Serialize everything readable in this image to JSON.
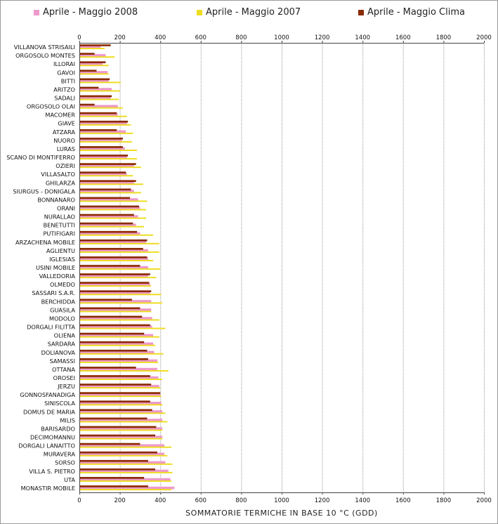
{
  "chart_data": {
    "type": "bar",
    "orientation": "horizontal",
    "xlabel": "SOMMATORIE TERMICHE IN BASE 10 °C (GDD)",
    "xlim": [
      0,
      2000
    ],
    "xticks": [
      0,
      200,
      400,
      600,
      800,
      1000,
      1200,
      1400,
      1600,
      1800,
      2000
    ],
    "grid": "vertical-dashed",
    "legend_position": "top",
    "colors": {
      "s2008": "#ee99cc",
      "s2007": "#eedd22",
      "clima": "#8b2b00"
    },
    "categories": [
      "VILLANOVA STRISAILI",
      "ORGOSOLO MONTES",
      "ILLORAI",
      "GAVOI",
      "BITTI",
      "ARITZO",
      "SADALI",
      "ORGOSOLO OLAI",
      "MACOMER",
      "GIAVE",
      "ATZARA",
      "NUORO",
      "LURAS",
      "SCANO DI MONTIFERRO",
      "OZIERI",
      "VILLASALTO",
      "GHILARZA",
      "SIURGUS - DONIGALA",
      "BONNANARO",
      "ORANI",
      "NURALLAO",
      "BENETUTTI",
      "PUTIFIGARI",
      "ARZACHENA MOBILE",
      "AGLIENTU",
      "IGLESIAS",
      "USINI MOBILE",
      "VALLEDORIA",
      "OLMEDO",
      "SASSARI S.A.R.",
      "BERCHIDDA",
      "GUASILA",
      "MODOLO",
      "DORGALI FILITTA",
      "OLIENA",
      "SARDARA",
      "DOLIANOVA",
      "SAMASSI",
      "OTTANA",
      "OROSEI",
      "JERZU",
      "GONNOSFANADIGA",
      "SINISCOLA",
      "DOMUS DE MARIA",
      "MILIS",
      "BARISARDO",
      "DECIMOMANNU",
      "DORGALI LANAITTO",
      "MURAVERA",
      "SORSO",
      "VILLA S. PIETRO",
      "UTA",
      "MONASTIR MOBILE"
    ],
    "series": [
      {
        "name": "Aprile - Maggio 2008",
        "color": "#ee99cc",
        "values": [
          105,
          130,
          115,
          140,
          145,
          160,
          155,
          190,
          190,
          235,
          230,
          210,
          225,
          235,
          270,
          235,
          270,
          270,
          290,
          300,
          290,
          280,
          300,
          330,
          340,
          340,
          340,
          340,
          350,
          350,
          355,
          355,
          360,
          360,
          365,
          365,
          370,
          385,
          385,
          390,
          395,
          400,
          405,
          410,
          410,
          410,
          410,
          420,
          420,
          425,
          440,
          450,
          470
        ]
      },
      {
        "name": "Aprile - Maggio 2007",
        "color": "#eedd22",
        "values": [
          125,
          175,
          145,
          145,
          205,
          200,
          195,
          215,
          235,
          255,
          265,
          260,
          285,
          285,
          305,
          265,
          315,
          305,
          335,
          330,
          330,
          320,
          365,
          395,
          395,
          365,
          400,
          380,
          355,
          405,
          410,
          355,
          395,
          425,
          395,
          375,
          415,
          390,
          440,
          410,
          400,
          405,
          410,
          425,
          435,
          410,
          410,
          455,
          435,
          460,
          460,
          455,
          455
        ]
      },
      {
        "name": "Aprile - Maggio Clima",
        "color": "#8b2b00",
        "values": [
          155,
          75,
          130,
          85,
          150,
          95,
          160,
          75,
          185,
          240,
          185,
          215,
          215,
          240,
          280,
          230,
          280,
          255,
          250,
          295,
          270,
          265,
          285,
          335,
          315,
          335,
          300,
          350,
          345,
          355,
          260,
          300,
          310,
          350,
          320,
          320,
          335,
          340,
          280,
          350,
          355,
          400,
          350,
          360,
          335,
          380,
          375,
          300,
          385,
          340,
          375,
          320,
          340
        ]
      }
    ]
  }
}
